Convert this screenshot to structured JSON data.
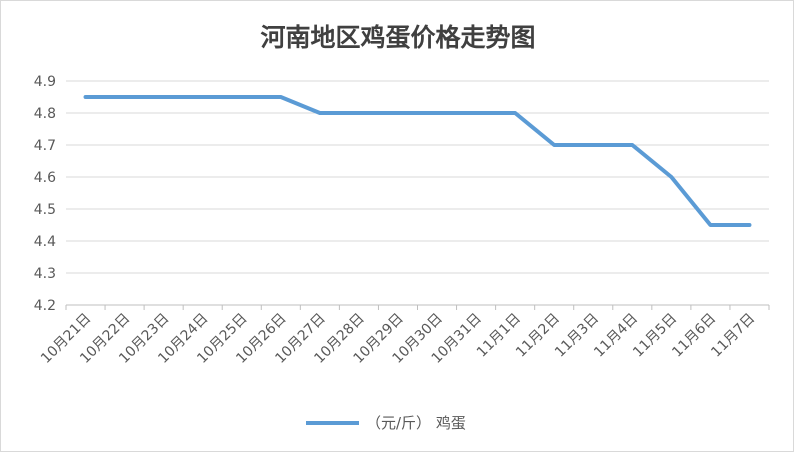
{
  "chart_data": {
    "type": "line",
    "title": "河南地区鸡蛋价格走势图",
    "categories": [
      "10月21日",
      "10月22日",
      "10月23日",
      "10月24日",
      "10月25日",
      "10月26日",
      "10月27日",
      "10月28日",
      "10月29日",
      "10月30日",
      "10月31日",
      "11月1日",
      "11月2日",
      "11月3日",
      "11月4日",
      "11月5日",
      "11月6日",
      "11月7日"
    ],
    "series": [
      {
        "name": "（元/斤） 鸡蛋",
        "color": "#5b9bd5",
        "values": [
          4.85,
          4.85,
          4.85,
          4.85,
          4.85,
          4.85,
          4.8,
          4.8,
          4.8,
          4.8,
          4.8,
          4.8,
          4.7,
          4.7,
          4.7,
          4.6,
          4.45,
          4.45
        ]
      }
    ],
    "ylim": [
      4.2,
      4.9
    ],
    "yticks": [
      "4.2",
      "4.3",
      "4.4",
      "4.5",
      "4.6",
      "4.7",
      "4.8",
      "4.9"
    ],
    "grid": true,
    "legend_position": "bottom"
  }
}
